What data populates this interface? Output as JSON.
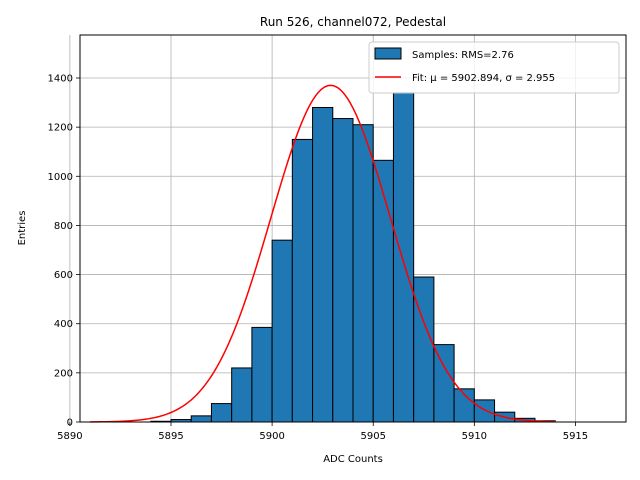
{
  "chart_data": {
    "type": "bar",
    "title": "Run 526, channel072, Pedestal",
    "xlabel": "ADC Counts",
    "ylabel": "Entries",
    "xlim": [
      5890.5,
      5917.5
    ],
    "ylim": [
      0,
      1575
    ],
    "xticks": [
      5890,
      5895,
      5900,
      5905,
      5910,
      5915
    ],
    "yticks": [
      0,
      200,
      400,
      600,
      800,
      1000,
      1200,
      1400
    ],
    "grid": true,
    "legend_position": "top-right",
    "bins": [
      {
        "x0": 5894,
        "x1": 5895,
        "count": 3
      },
      {
        "x0": 5895,
        "x1": 5896,
        "count": 10
      },
      {
        "x0": 5896,
        "x1": 5897,
        "count": 25
      },
      {
        "x0": 5897,
        "x1": 5898,
        "count": 75
      },
      {
        "x0": 5898,
        "x1": 5899,
        "count": 220
      },
      {
        "x0": 5899,
        "x1": 5900,
        "count": 385
      },
      {
        "x0": 5900,
        "x1": 5901,
        "count": 740
      },
      {
        "x0": 5901,
        "x1": 5902,
        "count": 1150
      },
      {
        "x0": 5902,
        "x1": 5903,
        "count": 1280
      },
      {
        "x0": 5903,
        "x1": 5904,
        "count": 1235
      },
      {
        "x0": 5904,
        "x1": 5905,
        "count": 1210
      },
      {
        "x0": 5905,
        "x1": 5906,
        "count": 1065
      },
      {
        "x0": 5906,
        "x1": 5907,
        "count": 1340
      },
      {
        "x0": 5907,
        "x1": 5908,
        "count": 590
      },
      {
        "x0": 5908,
        "x1": 5909,
        "count": 315
      },
      {
        "x0": 5909,
        "x1": 5910,
        "count": 135
      },
      {
        "x0": 5910,
        "x1": 5911,
        "count": 90
      },
      {
        "x0": 5911,
        "x1": 5912,
        "count": 40
      },
      {
        "x0": 5912,
        "x1": 5913,
        "count": 15
      },
      {
        "x0": 5913,
        "x1": 5914,
        "count": 5
      }
    ],
    "series": [
      {
        "name": "Samples: RMS=2.76",
        "kind": "histogram",
        "color": "#1f77b4",
        "edge_color": "#000000"
      },
      {
        "name": "Fit: μ = 5902.894, σ = 2.955",
        "kind": "gaussian_fit",
        "color": "#ff0000",
        "mu": 5902.894,
        "sigma": 2.955,
        "amplitude": 1370,
        "x_range": [
          5891,
          5914
        ]
      }
    ]
  }
}
